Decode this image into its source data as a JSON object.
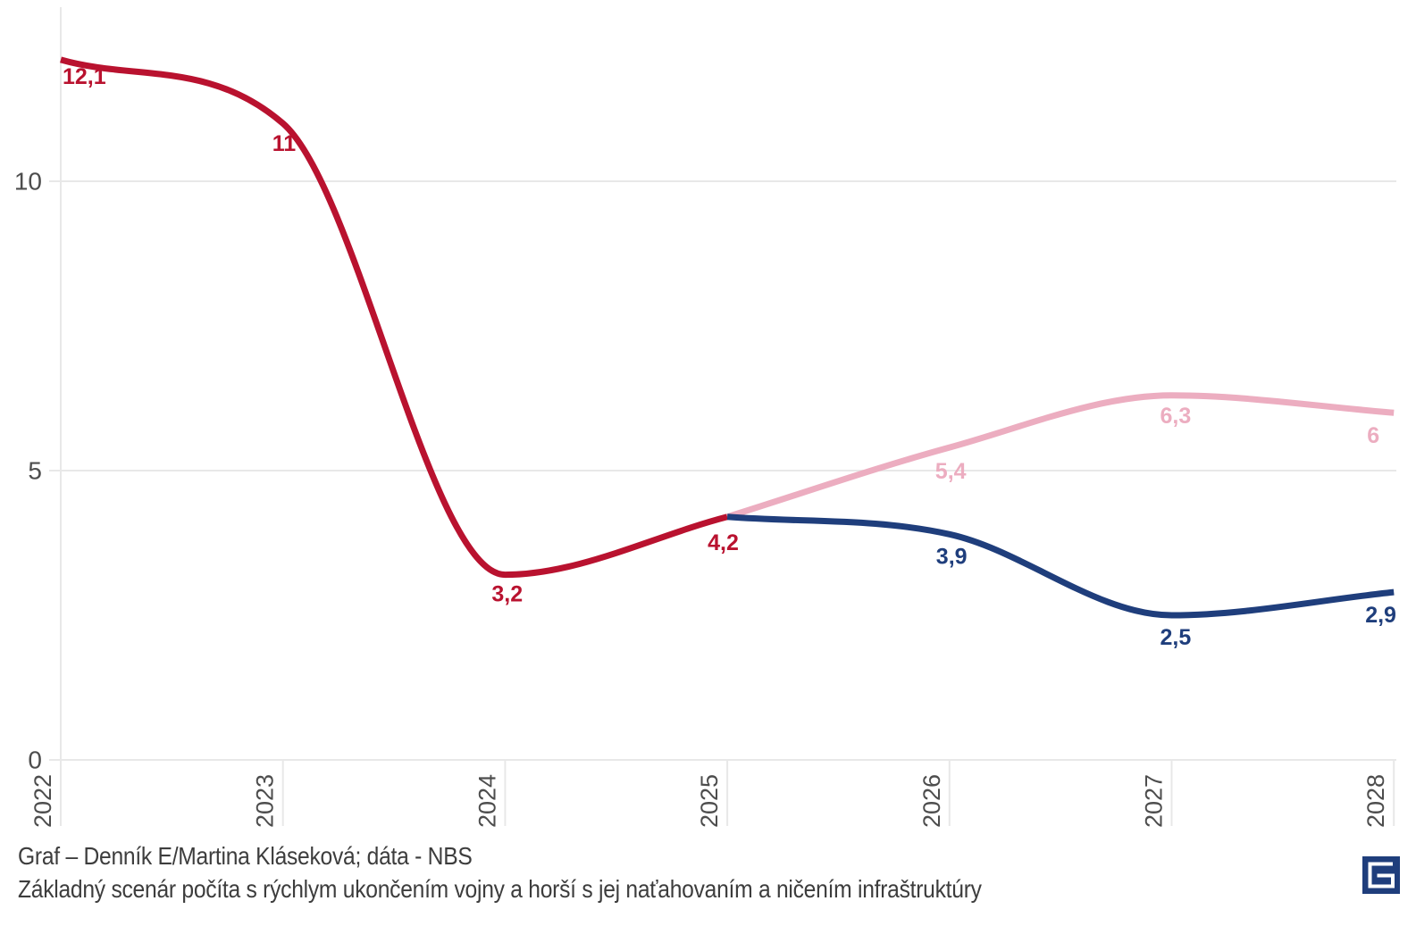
{
  "chart_data": {
    "type": "line",
    "title": "",
    "xlabel": "",
    "ylabel": "",
    "x_ticks": [
      "2022",
      "2023",
      "2024",
      "2025",
      "2026",
      "2027",
      "2028"
    ],
    "y_ticks": [
      0,
      5,
      10
    ],
    "ylim": [
      0,
      13
    ],
    "xlim": [
      2022,
      2028
    ],
    "grid": "horizontal",
    "legend": "none",
    "axis_label_color": "#4d4d4d",
    "grid_color": "#e8e8e8",
    "series": [
      {
        "id": "main",
        "color": "#b9122f",
        "x": [
          2022,
          2023,
          2024,
          2025
        ],
        "values": [
          12.1,
          11,
          3.2,
          4.2
        ],
        "labels": [
          "12,1",
          "11",
          "3,2",
          "4,2"
        ],
        "label_offsets": [
          [
            2,
            27
          ],
          [
            -12,
            31
          ],
          [
            -15,
            30
          ],
          [
            -22,
            37
          ]
        ]
      },
      {
        "id": "horsi-scenar",
        "color": "#ecadc0",
        "x": [
          2025,
          2026,
          2027,
          2028
        ],
        "values": [
          4.2,
          5.4,
          6.3,
          6
        ],
        "labels": [
          null,
          "5,4",
          "6,3",
          "6"
        ],
        "label_offsets": [
          null,
          [
            -16,
            35
          ],
          [
            -13,
            31
          ],
          [
            -30,
            34
          ]
        ]
      },
      {
        "id": "zakladny-scenar",
        "color": "#1f3e7c",
        "x": [
          2025,
          2026,
          2027,
          2028
        ],
        "values": [
          4.2,
          3.9,
          2.5,
          2.9
        ],
        "labels": [
          null,
          "3,9",
          "2,5",
          "2,9"
        ],
        "label_offsets": [
          null,
          [
            -15,
            33
          ],
          [
            -13,
            33
          ],
          [
            -32,
            34
          ]
        ]
      }
    ]
  },
  "footer": {
    "line1": "Graf – Denník E/Martina Kláseková; dáta - NBS",
    "line2": "Základný scenár počíta s rýchlym ukončením vojny a horší s jej naťahovaním a ničením infraštruktúry"
  },
  "logo": {
    "label": "E",
    "background": "#1f3e7c",
    "glyph_color": "#ffffff"
  }
}
